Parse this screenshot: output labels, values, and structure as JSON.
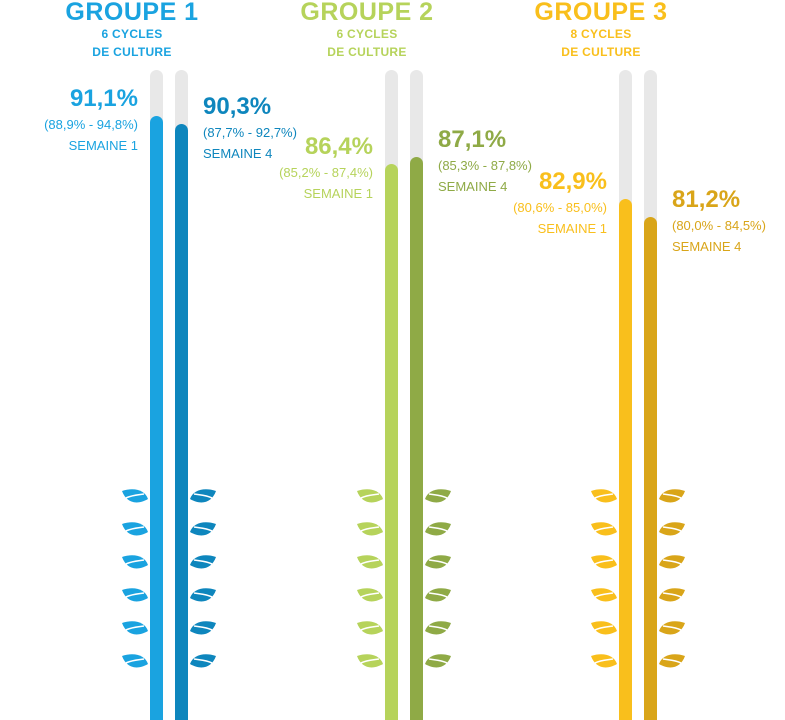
{
  "chart_data": {
    "type": "bar",
    "axis_range": [
      0,
      100
    ],
    "groups": [
      {
        "title": "GROUPE 1",
        "subtitle_line1": "6 CYCLES",
        "subtitle_line2": "DE CULTURE",
        "colors": {
          "week1": "#1aa3e0",
          "week4": "#0e86bd",
          "title": "#1aa3e0"
        },
        "bars": [
          {
            "name": "SEMAINE 1",
            "value": 91.1,
            "value_label": "91,1%",
            "ci": "(88,9% - 94,8%)"
          },
          {
            "name": "SEMAINE 4",
            "value": 90.3,
            "value_label": "90,3%",
            "ci": "(87,7% - 92,7%)"
          }
        ]
      },
      {
        "title": "GROUPE 2",
        "subtitle_line1": "6 CYCLES",
        "subtitle_line2": "DE CULTURE",
        "colors": {
          "week1": "#b6d35b",
          "week4": "#8faa46",
          "title": "#b6d35b"
        },
        "bars": [
          {
            "name": "SEMAINE 1",
            "value": 86.4,
            "value_label": "86,4%",
            "ci": "(85,2% - 87,4%)"
          },
          {
            "name": "SEMAINE 4",
            "value": 87.1,
            "value_label": "87,1%",
            "ci": "(85,3% - 87,8%)"
          }
        ]
      },
      {
        "title": "GROUPE 3",
        "subtitle_line1": "8 CYCLES",
        "subtitle_line2": "DE CULTURE",
        "colors": {
          "week1": "#f9bf1c",
          "week4": "#d9a519",
          "title": "#f9bf1c"
        },
        "bars": [
          {
            "name": "SEMAINE 1",
            "value": 82.9,
            "value_label": "82,9%",
            "ci": "(80,6% - 85,0%)"
          },
          {
            "name": "SEMAINE 4",
            "value": 81.2,
            "value_label": "81,2%",
            "ci": "(80,0% - 84,5%)"
          }
        ]
      }
    ]
  },
  "icons": {
    "leaf": "leaf-icon"
  }
}
